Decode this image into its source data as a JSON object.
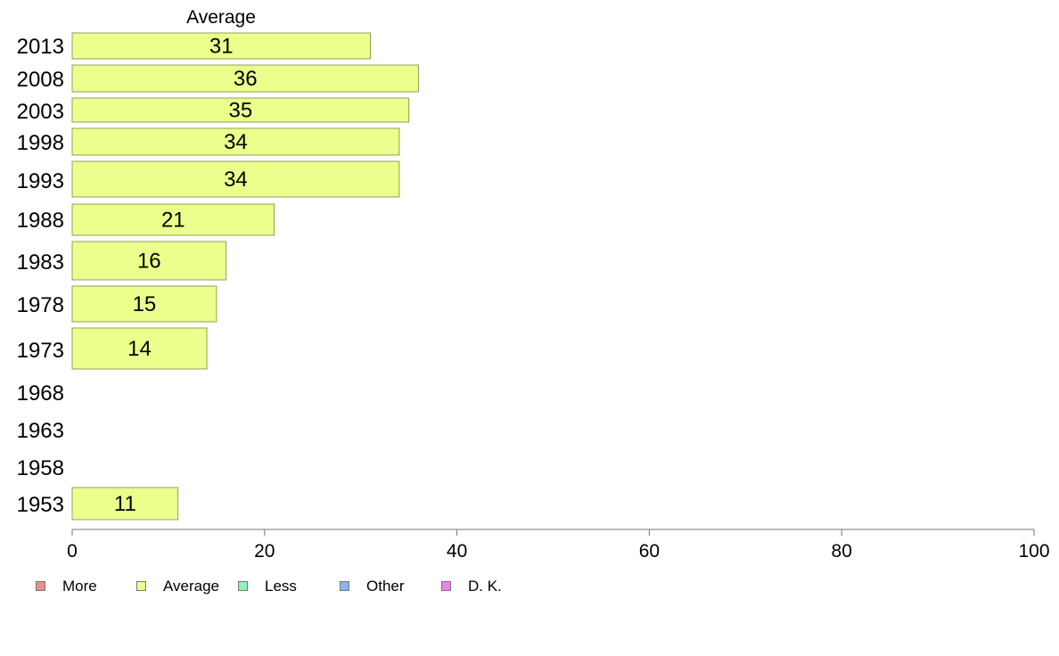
{
  "chart_data": {
    "type": "bar",
    "orientation": "horizontal",
    "series_header": "Average",
    "categories": [
      "2013",
      "2008",
      "2003",
      "1998",
      "1993",
      "1988",
      "1983",
      "1978",
      "1973",
      "1968",
      "1963",
      "1958",
      "1953"
    ],
    "values": [
      31,
      36,
      35,
      34,
      34,
      21,
      16,
      15,
      14,
      null,
      null,
      null,
      11
    ],
    "data_labels": [
      "31",
      "36",
      "35",
      "34",
      "34",
      "21",
      "16",
      "15",
      "14",
      "",
      "",
      "",
      "11"
    ],
    "xlim": [
      0,
      100
    ],
    "x_ticks": [
      "0",
      "20",
      "40",
      "60",
      "80",
      "100"
    ],
    "bar_color": "#ecff8c",
    "bar_border_color": "#8fa05a",
    "grid": false,
    "legend_position": "bottom-left",
    "legend": [
      {
        "label": "More",
        "color": "#f08c8c"
      },
      {
        "label": "Average",
        "color": "#ecff8c"
      },
      {
        "label": "Less",
        "color": "#8cf5b4"
      },
      {
        "label": "Other",
        "color": "#8cb4f0"
      },
      {
        "label": "D. K.",
        "color": "#ee82ee"
      }
    ]
  }
}
